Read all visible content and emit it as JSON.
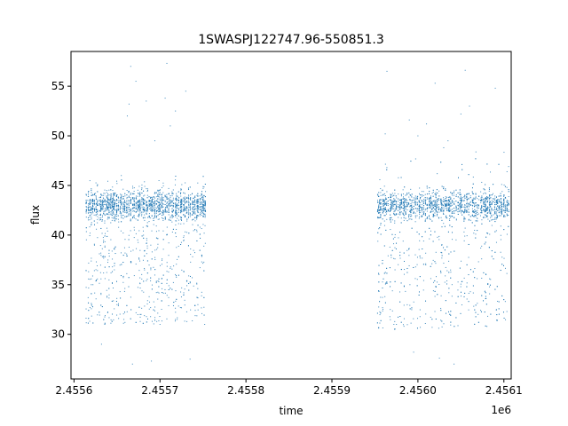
{
  "chart_data": {
    "type": "scatter",
    "title": "1SWASPJ122747.96-550851.3",
    "xlabel": "time",
    "ylabel": "flux",
    "x_offset_label": "1e6",
    "xlim": [
      2455596.5,
      2456108.5
    ],
    "ylim": [
      25.5,
      58.5
    ],
    "x_ticks": [
      2455600,
      2455700,
      2455800,
      2455900,
      2456000,
      2456100
    ],
    "x_tick_labels": [
      "2.4556",
      "2.4557",
      "2.4558",
      "2.4559",
      "2.4560",
      "2.4561"
    ],
    "y_ticks": [
      30,
      35,
      40,
      45,
      50,
      55
    ],
    "y_tick_labels": [
      "30",
      "35",
      "40",
      "45",
      "50",
      "55"
    ],
    "grid": false,
    "marker_color": "#1f77b4",
    "segments": [
      {
        "x_start": 2455614,
        "x_end": 2455754,
        "baseline": 43.0,
        "low": 31.0,
        "high": 46.0
      },
      {
        "x_start": 2455953,
        "x_end": 2456107,
        "baseline": 43.0,
        "low": 30.5,
        "high": 48.5
      }
    ],
    "points": [
      {
        "x": 2455616,
        "y": 43.5
      },
      {
        "x": 2455618,
        "y": 42.8
      },
      {
        "x": 2455620,
        "y": 41.0
      },
      {
        "x": 2455622,
        "y": 35.0
      },
      {
        "x": 2455625,
        "y": 44.2
      },
      {
        "x": 2455628,
        "y": 43.0
      },
      {
        "x": 2455632,
        "y": 29.0
      },
      {
        "x": 2455640,
        "y": 43.6
      },
      {
        "x": 2455645,
        "y": 44.5
      },
      {
        "x": 2455650,
        "y": 45.2
      },
      {
        "x": 2455655,
        "y": 46.0
      },
      {
        "x": 2455658,
        "y": 31.5
      },
      {
        "x": 2455662,
        "y": 52.0
      },
      {
        "x": 2455664,
        "y": 53.2
      },
      {
        "x": 2455665,
        "y": 49.0
      },
      {
        "x": 2455666,
        "y": 57.0
      },
      {
        "x": 2455668,
        "y": 27.0
      },
      {
        "x": 2455672,
        "y": 55.5
      },
      {
        "x": 2455678,
        "y": 32.0
      },
      {
        "x": 2455684,
        "y": 53.5
      },
      {
        "x": 2455690,
        "y": 27.3
      },
      {
        "x": 2455694,
        "y": 49.5
      },
      {
        "x": 2455700,
        "y": 31.0
      },
      {
        "x": 2455706,
        "y": 53.8
      },
      {
        "x": 2455708,
        "y": 57.3
      },
      {
        "x": 2455712,
        "y": 51.0
      },
      {
        "x": 2455718,
        "y": 52.5
      },
      {
        "x": 2455720,
        "y": 31.5
      },
      {
        "x": 2455730,
        "y": 54.5
      },
      {
        "x": 2455735,
        "y": 27.5
      },
      {
        "x": 2455752,
        "y": 31.0
      },
      {
        "x": 2455955,
        "y": 42.5
      },
      {
        "x": 2455962,
        "y": 50.2
      },
      {
        "x": 2455964,
        "y": 56.5
      },
      {
        "x": 2455975,
        "y": 31.0
      },
      {
        "x": 2455990,
        "y": 51.6
      },
      {
        "x": 2455995,
        "y": 28.2
      },
      {
        "x": 2456000,
        "y": 50.0
      },
      {
        "x": 2456010,
        "y": 51.2
      },
      {
        "x": 2456020,
        "y": 55.3
      },
      {
        "x": 2456025,
        "y": 27.6
      },
      {
        "x": 2456030,
        "y": 48.8
      },
      {
        "x": 2456035,
        "y": 49.5
      },
      {
        "x": 2456042,
        "y": 27.0
      },
      {
        "x": 2456050,
        "y": 52.2
      },
      {
        "x": 2456055,
        "y": 56.6
      },
      {
        "x": 2456060,
        "y": 53.0
      },
      {
        "x": 2456070,
        "y": 32.0
      },
      {
        "x": 2456090,
        "y": 54.8
      },
      {
        "x": 2456105,
        "y": 42.0
      }
    ]
  }
}
